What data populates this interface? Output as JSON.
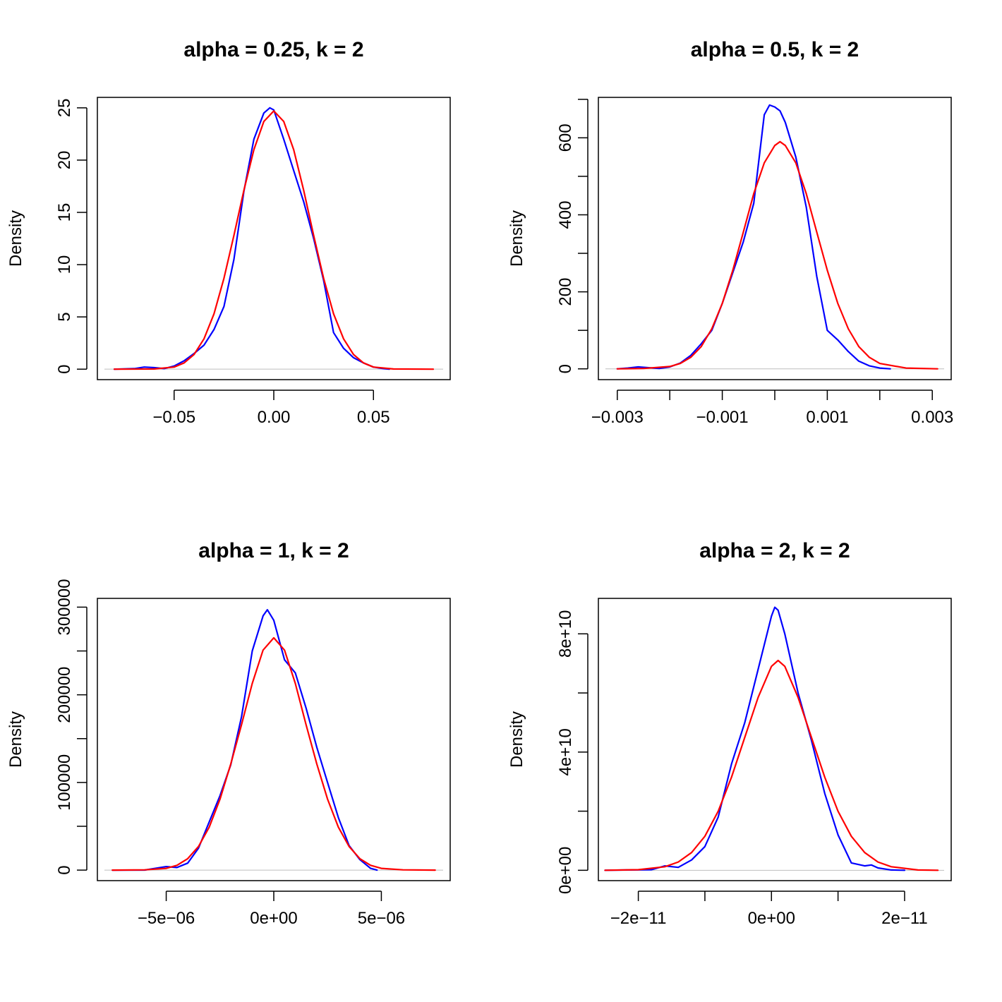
{
  "chart_data": [
    {
      "type": "line",
      "title": "alpha = 0.25, k = 2",
      "ylabel": "Density",
      "xlabel": "",
      "xlim": [
        -0.0885,
        0.0885
      ],
      "ylim": [
        -1,
        26
      ],
      "x_ticks": [
        -0.05,
        0.0,
        0.05
      ],
      "x_tick_labels": [
        "−0.05",
        "0.00",
        "0.05"
      ],
      "x_tick_minor": [],
      "y_ticks": [
        0,
        5,
        10,
        15,
        20,
        25
      ],
      "y_tick_labels": [
        "0",
        "5",
        "10",
        "15",
        "20",
        "25"
      ],
      "y_tick_minor": [],
      "zero_line": true,
      "series": [
        {
          "color": "#0000ff",
          "points": [
            [
              -0.08,
              0
            ],
            [
              -0.07,
              0.05
            ],
            [
              -0.065,
              0.2
            ],
            [
              -0.06,
              0.15
            ],
            [
              -0.055,
              0.05
            ],
            [
              -0.05,
              0.3
            ],
            [
              -0.045,
              0.8
            ],
            [
              -0.04,
              1.5
            ],
            [
              -0.035,
              2.3
            ],
            [
              -0.03,
              3.8
            ],
            [
              -0.025,
              6.0
            ],
            [
              -0.02,
              10.5
            ],
            [
              -0.015,
              17.0
            ],
            [
              -0.01,
              22.0
            ],
            [
              -0.005,
              24.5
            ],
            [
              -0.002,
              25.0
            ],
            [
              0.0,
              24.8
            ],
            [
              0.005,
              22.0
            ],
            [
              0.01,
              19.0
            ],
            [
              0.015,
              16.0
            ],
            [
              0.02,
              12.5
            ],
            [
              0.025,
              8.5
            ],
            [
              0.03,
              3.5
            ],
            [
              0.035,
              2.0
            ],
            [
              0.04,
              1.1
            ],
            [
              0.045,
              0.6
            ],
            [
              0.05,
              0.2
            ],
            [
              0.055,
              0.05
            ],
            [
              0.058,
              0
            ]
          ]
        },
        {
          "color": "#ff0000",
          "points": [
            [
              -0.08,
              0
            ],
            [
              -0.06,
              0.02
            ],
            [
              -0.05,
              0.2
            ],
            [
              -0.045,
              0.6
            ],
            [
              -0.04,
              1.4
            ],
            [
              -0.035,
              2.9
            ],
            [
              -0.03,
              5.3
            ],
            [
              -0.025,
              8.7
            ],
            [
              -0.02,
              12.8
            ],
            [
              -0.015,
              17.1
            ],
            [
              -0.01,
              21.0
            ],
            [
              -0.005,
              23.7
            ],
            [
              0.0,
              24.7
            ],
            [
              0.005,
              23.7
            ],
            [
              0.01,
              21.0
            ],
            [
              0.015,
              17.1
            ],
            [
              0.02,
              12.8
            ],
            [
              0.025,
              8.7
            ],
            [
              0.03,
              5.3
            ],
            [
              0.035,
              2.9
            ],
            [
              0.04,
              1.4
            ],
            [
              0.045,
              0.6
            ],
            [
              0.05,
              0.2
            ],
            [
              0.06,
              0.02
            ],
            [
              0.08,
              0
            ]
          ]
        }
      ]
    },
    {
      "type": "line",
      "title": "alpha = 0.5, k = 2",
      "ylabel": "Density",
      "xlabel": "",
      "xlim": [
        -0.00336,
        0.00336
      ],
      "ylim": [
        -28,
        705
      ],
      "x_ticks": [
        -0.003,
        -0.001,
        0.001,
        0.003
      ],
      "x_tick_labels": [
        "−0.003",
        "−0.001",
        "0.001",
        "0.003"
      ],
      "x_tick_minor": [
        -0.002,
        0.0,
        0.002
      ],
      "y_ticks": [
        0,
        200,
        400,
        600
      ],
      "y_tick_labels": [
        "0",
        "200",
        "400",
        "600"
      ],
      "y_tick_minor": [
        100,
        300,
        500,
        700
      ],
      "zero_line": true,
      "series": [
        {
          "color": "#0000ff",
          "points": [
            [
              -0.003,
              0
            ],
            [
              -0.0028,
              2
            ],
            [
              -0.0026,
              5
            ],
            [
              -0.0024,
              3
            ],
            [
              -0.0022,
              1
            ],
            [
              -0.002,
              5
            ],
            [
              -0.0018,
              15
            ],
            [
              -0.0016,
              35
            ],
            [
              -0.0014,
              65
            ],
            [
              -0.0012,
              100
            ],
            [
              -0.001,
              170
            ],
            [
              -0.0008,
              250
            ],
            [
              -0.0006,
              330
            ],
            [
              -0.0004,
              430
            ],
            [
              -0.0002,
              660
            ],
            [
              -0.0001,
              685
            ],
            [
              0.0,
              680
            ],
            [
              0.0001,
              670
            ],
            [
              0.0002,
              640
            ],
            [
              0.0004,
              550
            ],
            [
              0.0006,
              420
            ],
            [
              0.0008,
              240
            ],
            [
              0.001,
              100
            ],
            [
              0.0012,
              75
            ],
            [
              0.0014,
              45
            ],
            [
              0.0016,
              20
            ],
            [
              0.0018,
              8
            ],
            [
              0.002,
              2
            ],
            [
              0.0022,
              0
            ]
          ]
        },
        {
          "color": "#ff0000",
          "points": [
            [
              -0.003,
              0
            ],
            [
              -0.0025,
              1
            ],
            [
              -0.002,
              6
            ],
            [
              -0.0018,
              14
            ],
            [
              -0.0016,
              30
            ],
            [
              -0.0014,
              58
            ],
            [
              -0.0012,
              104
            ],
            [
              -0.001,
              170
            ],
            [
              -0.0008,
              256
            ],
            [
              -0.0006,
              355
            ],
            [
              -0.0004,
              455
            ],
            [
              -0.0002,
              535
            ],
            [
              0.0,
              580
            ],
            [
              0.0001,
              590
            ],
            [
              0.0002,
              580
            ],
            [
              0.0004,
              535
            ],
            [
              0.0006,
              455
            ],
            [
              0.0008,
              355
            ],
            [
              0.001,
              256
            ],
            [
              0.0012,
              170
            ],
            [
              0.0014,
              104
            ],
            [
              0.0016,
              58
            ],
            [
              0.0018,
              30
            ],
            [
              0.002,
              14
            ],
            [
              0.0025,
              2
            ],
            [
              0.0031,
              0
            ]
          ]
        }
      ]
    },
    {
      "type": "line",
      "title": "alpha = 1, k = 2",
      "ylabel": "Density",
      "xlabel": "",
      "xlim": [
        -8.2e-06,
        8.2e-06
      ],
      "ylim": [
        -12000,
        310000
      ],
      "x_ticks": [
        -5e-06,
        0.0,
        5e-06
      ],
      "x_tick_labels": [
        "−5e−06",
        "0e+00",
        "5e−06"
      ],
      "x_tick_minor": [],
      "y_ticks": [
        0,
        100000,
        200000,
        300000
      ],
      "y_tick_labels": [
        "0",
        "100000",
        "200000",
        "300000"
      ],
      "y_tick_minor": [
        50000,
        150000,
        250000
      ],
      "zero_line": true,
      "series": [
        {
          "color": "#0000ff",
          "points": [
            [
              -7.5e-06,
              0
            ],
            [
              -6e-06,
              100
            ],
            [
              -5e-06,
              4000
            ],
            [
              -4.5e-06,
              3000
            ],
            [
              -4e-06,
              8000
            ],
            [
              -3.5e-06,
              25000
            ],
            [
              -3e-06,
              55000
            ],
            [
              -2.5e-06,
              85000
            ],
            [
              -2e-06,
              120000
            ],
            [
              -1.5e-06,
              175000
            ],
            [
              -1e-06,
              250000
            ],
            [
              -5e-07,
              290000
            ],
            [
              -3e-07,
              297000
            ],
            [
              0.0,
              285000
            ],
            [
              5e-07,
              240000
            ],
            [
              1e-06,
              225000
            ],
            [
              1.5e-06,
              185000
            ],
            [
              2e-06,
              140000
            ],
            [
              2.5e-06,
              100000
            ],
            [
              3e-06,
              60000
            ],
            [
              3.5e-06,
              28000
            ],
            [
              4e-06,
              12000
            ],
            [
              4.5e-06,
              2000
            ],
            [
              4.8e-06,
              0
            ]
          ]
        },
        {
          "color": "#ff0000",
          "points": [
            [
              -7.5e-06,
              0
            ],
            [
              -6e-06,
              300
            ],
            [
              -5e-06,
              2000
            ],
            [
              -4.5e-06,
              5500
            ],
            [
              -4e-06,
              13000
            ],
            [
              -3.5e-06,
              27000
            ],
            [
              -3e-06,
              49000
            ],
            [
              -2.5e-06,
              81000
            ],
            [
              -2e-06,
              121000
            ],
            [
              -1.5e-06,
              166000
            ],
            [
              -1e-06,
              213000
            ],
            [
              -5e-07,
              251000
            ],
            [
              0.0,
              265000
            ],
            [
              5e-07,
              251000
            ],
            [
              1e-06,
              213000
            ],
            [
              1.5e-06,
              166000
            ],
            [
              2e-06,
              121000
            ],
            [
              2.5e-06,
              81000
            ],
            [
              3e-06,
              49000
            ],
            [
              3.5e-06,
              27000
            ],
            [
              4e-06,
              13000
            ],
            [
              4.5e-06,
              5500
            ],
            [
              5e-06,
              2000
            ],
            [
              6e-06,
              300
            ],
            [
              7.5e-06,
              0
            ]
          ]
        }
      ]
    },
    {
      "type": "line",
      "title": "alpha = 2, k = 2",
      "ylabel": "Density",
      "xlabel": "",
      "xlim": [
        -2.6e-11,
        2.7e-11
      ],
      "ylim": [
        -3500000000.0,
        92000000000.0
      ],
      "x_ticks": [
        -2e-11,
        0.0,
        2e-11
      ],
      "x_tick_labels": [
        "−2e−11",
        "0e+00",
        "2e−11"
      ],
      "x_tick_minor": [
        -1e-11,
        1e-11
      ],
      "y_ticks": [
        0,
        40000000000.0,
        80000000000.0
      ],
      "y_tick_labels": [
        "0e+00",
        "4e+10",
        "8e+10"
      ],
      "y_tick_minor": [
        20000000000.0,
        60000000000.0
      ],
      "zero_line": true,
      "series": [
        {
          "color": "#0000ff",
          "points": [
            [
              -2.5e-11,
              0
            ],
            [
              -1.8e-11,
              200000000.0
            ],
            [
              -1.6e-11,
              1500000000.0
            ],
            [
              -1.4e-11,
              1000000000.0
            ],
            [
              -1.2e-11,
              3500000000.0
            ],
            [
              -1e-11,
              8000000000.0
            ],
            [
              -8e-12,
              18000000000.0
            ],
            [
              -6e-12,
              36000000000.0
            ],
            [
              -4e-12,
              50000000000.0
            ],
            [
              -2e-12,
              68000000000.0
            ],
            [
              0.0,
              86000000000.0
            ],
            [
              5e-13,
              89000000000.0
            ],
            [
              1e-12,
              88000000000.0
            ],
            [
              2e-12,
              80000000000.0
            ],
            [
              4e-12,
              60000000000.0
            ],
            [
              6e-12,
              44000000000.0
            ],
            [
              8e-12,
              26000000000.0
            ],
            [
              1e-11,
              12000000000.0
            ],
            [
              1.2e-11,
              2500000000.0
            ],
            [
              1.4e-11,
              1500000000.0
            ],
            [
              1.5e-11,
              1800000000.0
            ],
            [
              1.6e-11,
              800000000.0
            ],
            [
              1.8e-11,
              100000000.0
            ],
            [
              2e-11,
              0
            ]
          ]
        },
        {
          "color": "#ff0000",
          "points": [
            [
              -2.5e-11,
              0
            ],
            [
              -2e-11,
              200000000.0
            ],
            [
              -1.6e-11,
              1200000000.0
            ],
            [
              -1.4e-11,
              2800000000.0
            ],
            [
              -1.2e-11,
              6000000000.0
            ],
            [
              -1e-11,
              11500000000.0
            ],
            [
              -8e-12,
              20000000000.0
            ],
            [
              -6e-12,
              31500000000.0
            ],
            [
              -4e-12,
              45000000000.0
            ],
            [
              -2e-12,
              58500000000.0
            ],
            [
              0.0,
              69000000000.0
            ],
            [
              1e-12,
              71000000000.0
            ],
            [
              2e-12,
              69000000000.0
            ],
            [
              4e-12,
              58500000000.0
            ],
            [
              6e-12,
              45000000000.0
            ],
            [
              8e-12,
              31500000000.0
            ],
            [
              1e-11,
              20000000000.0
            ],
            [
              1.2e-11,
              11500000000.0
            ],
            [
              1.4e-11,
              6000000000.0
            ],
            [
              1.6e-11,
              2800000000.0
            ],
            [
              1.8e-11,
              1200000000.0
            ],
            [
              2.2e-11,
              100000000.0
            ],
            [
              2.5e-11,
              0
            ]
          ]
        }
      ]
    }
  ]
}
